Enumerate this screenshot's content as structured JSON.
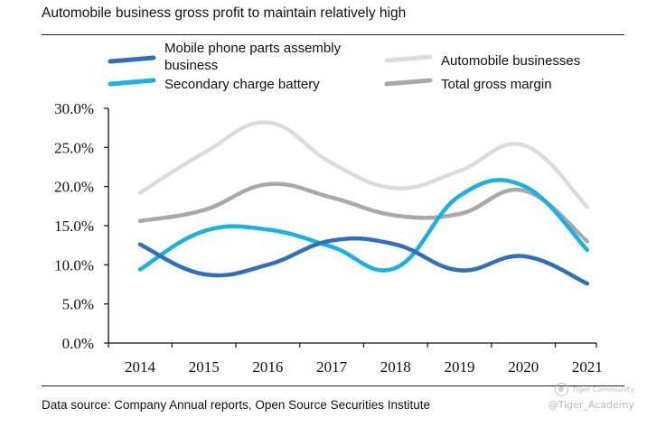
{
  "title": "Automobile business gross profit to maintain relatively high",
  "source": "Data source: Company Annual reports, Open Source Securities Institute",
  "watermark": {
    "brand": "Tiger Community",
    "handle": "@Tiger_Academy"
  },
  "chart_data": {
    "type": "line",
    "smooth": true,
    "categories": [
      "2014",
      "2015",
      "2016",
      "2017",
      "2018",
      "2019",
      "2020",
      "2021"
    ],
    "ylim": [
      0,
      30
    ],
    "yticks": [
      "0.0%",
      "5.0%",
      "10.0%",
      "15.0%",
      "20.0%",
      "25.0%",
      "30.0%"
    ],
    "grid": false,
    "legend": "top",
    "series": [
      {
        "name": "Mobile phone parts assembly business",
        "legend_lines": [
          "Mobile phone parts assembly",
          "business"
        ],
        "color": "#2f6fbf",
        "values": [
          12.6,
          8.8,
          10.0,
          13.1,
          12.6,
          9.3,
          11.1,
          7.6
        ]
      },
      {
        "name": "Secondary charge battery",
        "legend_lines": [
          "Secondary charge battery"
        ],
        "color": "#19b0e6",
        "values": [
          9.4,
          14.3,
          14.5,
          12.3,
          9.6,
          18.8,
          20.1,
          11.9
        ]
      },
      {
        "name": "Automobile businesses",
        "legend_lines": [
          "Automobile businesses"
        ],
        "color": "#dcdcdc",
        "values": [
          19.2,
          24.3,
          28.2,
          23.0,
          19.8,
          22.0,
          25.3,
          17.4
        ]
      },
      {
        "name": "Total gross margin",
        "legend_lines": [
          "Total gross margin"
        ],
        "color": "#a9a9a9",
        "values": [
          15.6,
          17.0,
          20.3,
          18.6,
          16.3,
          16.5,
          19.5,
          13.0
        ]
      }
    ]
  }
}
